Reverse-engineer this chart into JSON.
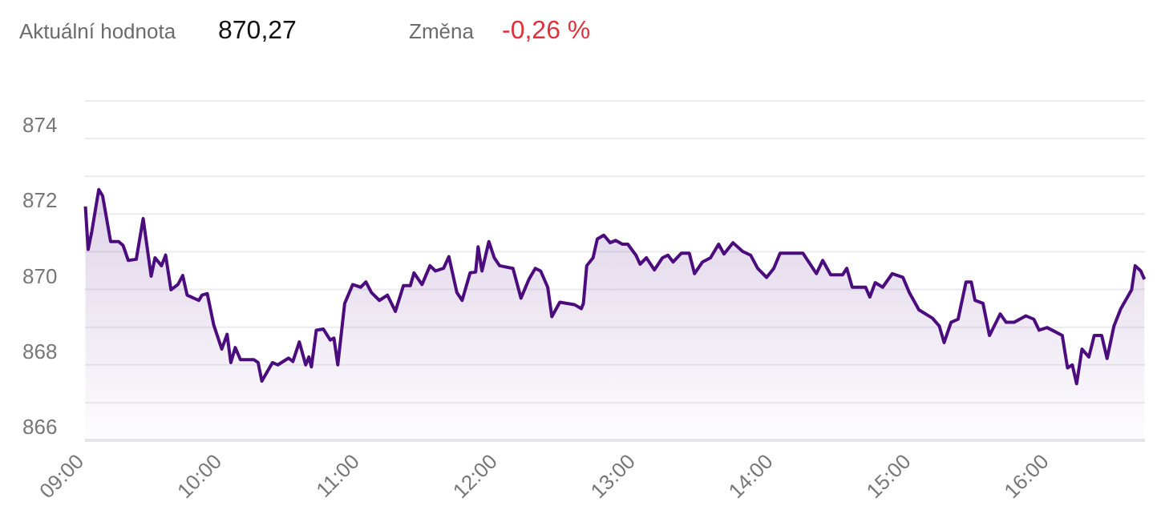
{
  "chart_data": {
    "type": "area",
    "annotations": [
      "Aktuální hodnota",
      "870,27",
      "Změna",
      "-0,26 %"
    ],
    "xlim": [
      9,
      16.69
    ],
    "ylim": [
      866,
      875
    ],
    "xticks": [
      {
        "value": 9,
        "label": "09:00"
      },
      {
        "value": 10,
        "label": "10:00"
      },
      {
        "value": 11,
        "label": "11:00"
      },
      {
        "value": 12,
        "label": "12:00"
      },
      {
        "value": 13,
        "label": "13:00"
      },
      {
        "value": 14,
        "label": "14:00"
      },
      {
        "value": 15,
        "label": "15:00"
      },
      {
        "value": 16,
        "label": "16:00"
      }
    ],
    "yticks": [
      866,
      {
        "value": 867,
        "label": null
      },
      868,
      {
        "value": 869,
        "label": null
      },
      870,
      {
        "value": 871,
        "label": null
      },
      872,
      {
        "value": 873,
        "label": null
      },
      874,
      {
        "value": 875,
        "label": null
      }
    ],
    "grid": "y",
    "series": [
      {
        "color": "#4b0c7e",
        "x": [
          9.003,
          9.023,
          9.05,
          9.1,
          9.128,
          9.186,
          9.244,
          9.276,
          9.314,
          9.372,
          9.422,
          9.48,
          9.508,
          9.555,
          9.585,
          9.624,
          9.674,
          9.709,
          9.741,
          9.826,
          9.849,
          9.887,
          9.934,
          9.992,
          10.031,
          10.058,
          10.09,
          10.128,
          10.224,
          10.256,
          10.283,
          10.36,
          10.399,
          10.477,
          10.508,
          10.555,
          10.601,
          10.624,
          10.643,
          10.678,
          10.729,
          10.779,
          10.806,
          10.834,
          10.884,
          10.942,
          11.0,
          11.038,
          11.078,
          11.136,
          11.194,
          11.252,
          11.31,
          11.36,
          11.387,
          11.445,
          11.503,
          11.543,
          11.601,
          11.64,
          11.698,
          11.736,
          11.794,
          11.834,
          11.852,
          11.88,
          11.93,
          11.969,
          12.008,
          12.105,
          12.163,
          12.221,
          12.267,
          12.306,
          12.357,
          12.387,
          12.445,
          12.55,
          12.601,
          12.616,
          12.64,
          12.686,
          12.717,
          12.764,
          12.81,
          12.849,
          12.899,
          12.938,
          12.997,
          13.027,
          13.073,
          13.131,
          13.19,
          13.229,
          13.267,
          13.326,
          13.384,
          13.422,
          13.48,
          13.538,
          13.597,
          13.636,
          13.701,
          13.771,
          13.829,
          13.88,
          13.945,
          13.997,
          14.043,
          14.209,
          14.306,
          14.352,
          14.41,
          14.497,
          14.527,
          14.566,
          14.663,
          14.694,
          14.733,
          14.787,
          14.857,
          14.934,
          14.98,
          15.05,
          15.148,
          15.198,
          15.233,
          15.283,
          15.334,
          15.392,
          15.43,
          15.457,
          15.515,
          15.562,
          15.64,
          15.683,
          15.741,
          15.826,
          15.884,
          15.922,
          15.98,
          16.09,
          16.128,
          16.163,
          16.194,
          16.233,
          16.283,
          16.322,
          16.376,
          16.415,
          16.465,
          16.515,
          16.593,
          16.619,
          16.66,
          16.686
        ],
        "values": [
          872.2,
          871.06,
          871.55,
          872.65,
          872.48,
          871.27,
          871.27,
          871.17,
          870.77,
          870.8,
          871.88,
          870.35,
          870.84,
          870.63,
          870.91,
          869.99,
          870.13,
          870.37,
          869.85,
          869.71,
          869.85,
          869.89,
          869.06,
          868.42,
          868.81,
          868.06,
          868.46,
          868.14,
          868.14,
          868.06,
          867.57,
          868.06,
          868.0,
          868.18,
          868.09,
          868.61,
          868.0,
          868.21,
          867.95,
          868.92,
          868.95,
          868.66,
          868.71,
          868.0,
          869.63,
          870.13,
          870.06,
          870.2,
          869.92,
          869.71,
          869.85,
          869.42,
          870.1,
          870.1,
          870.44,
          870.13,
          870.63,
          870.49,
          870.56,
          870.87,
          869.92,
          869.71,
          870.44,
          870.46,
          871.13,
          870.49,
          871.27,
          870.84,
          870.63,
          870.56,
          869.77,
          870.27,
          870.56,
          870.49,
          870.06,
          869.28,
          869.66,
          869.6,
          869.49,
          869.63,
          870.63,
          870.84,
          871.34,
          871.44,
          871.24,
          871.3,
          871.2,
          871.2,
          870.91,
          870.67,
          870.84,
          870.52,
          870.84,
          870.91,
          870.73,
          870.96,
          870.96,
          870.42,
          870.73,
          870.84,
          871.2,
          870.94,
          871.24,
          871.01,
          870.91,
          870.56,
          870.32,
          870.56,
          870.96,
          870.96,
          870.42,
          870.77,
          870.39,
          870.39,
          870.56,
          870.06,
          870.06,
          869.8,
          870.18,
          870.06,
          870.42,
          870.32,
          869.92,
          869.46,
          869.24,
          869.03,
          868.59,
          869.13,
          869.21,
          870.2,
          870.2,
          869.71,
          869.63,
          868.78,
          869.35,
          869.13,
          869.13,
          869.3,
          869.21,
          868.92,
          868.99,
          868.78,
          867.92,
          868.0,
          867.5,
          868.42,
          868.21,
          868.78,
          868.78,
          868.17,
          869.03,
          869.49,
          869.99,
          870.63,
          870.49,
          870.27
        ]
      }
    ]
  }
}
